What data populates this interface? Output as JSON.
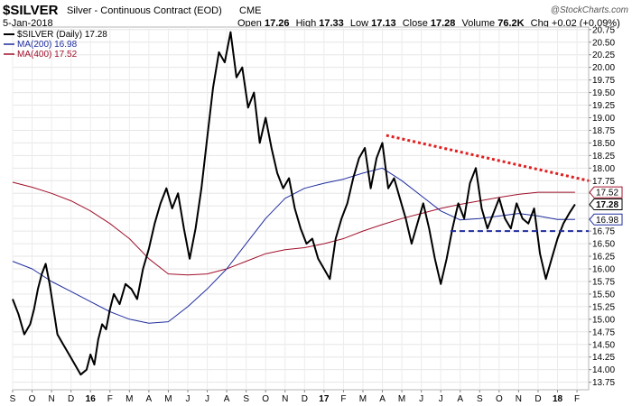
{
  "header": {
    "symbol": "$SILVER",
    "description": "Silver - Continuous Contract (EOD)",
    "exchange": "CME",
    "date": "5-Jan-2018",
    "ohlc": {
      "open_label": "Open",
      "open": "17.26",
      "high_label": "High",
      "high": "17.33",
      "low_label": "Low",
      "low": "17.13",
      "close_label": "Close",
      "close": "17.28",
      "volume_label": "Volume",
      "volume": "76.2K",
      "chg_label": "Chg",
      "chg": "+0.02 (+0.09%)"
    },
    "watermark": "@StockCharts.com"
  },
  "legend": [
    {
      "text": "$SILVER (Daily) 17.28",
      "color": "#000000"
    },
    {
      "text": "MA(200) 16.98",
      "color": "#1f2d9e"
    },
    {
      "text": "MA(400) 17.52",
      "color": "#a0102a"
    }
  ],
  "chart_data": {
    "type": "line",
    "x_tick_labels": [
      "S",
      "O",
      "N",
      "D",
      "16",
      "F",
      "M",
      "A",
      "M",
      "J",
      "J",
      "A",
      "S",
      "O",
      "N",
      "D",
      "17",
      "F",
      "M",
      "A",
      "M",
      "J",
      "J",
      "A",
      "S",
      "O",
      "N",
      "D",
      "18",
      "F"
    ],
    "y_tick_labels": [
      "13.75",
      "14.00",
      "14.25",
      "14.50",
      "14.75",
      "15.00",
      "15.25",
      "15.50",
      "15.75",
      "16.00",
      "16.25",
      "16.50",
      "16.75",
      "17.00",
      "17.25",
      "17.50",
      "17.75",
      "18.00",
      "18.25",
      "18.50",
      "18.75",
      "19.00",
      "19.25",
      "19.50",
      "19.75",
      "20.00",
      "20.25",
      "20.50",
      "20.75"
    ],
    "ylim": [
      13.6,
      20.8
    ],
    "xlim": [
      0,
      29.6
    ],
    "y_scale": "linear",
    "grid": true,
    "legend_position": "top-left",
    "value_labels": [
      {
        "text": "17.52",
        "value": 17.52,
        "color": "#a0102a",
        "bold": false
      },
      {
        "text": "17.28",
        "value": 17.28,
        "color": "#000000",
        "bold": true
      },
      {
        "text": "16.98",
        "value": 16.98,
        "color": "#1f2d9e",
        "bold": false
      }
    ],
    "series": [
      {
        "name": "$SILVER (Daily)",
        "color": "#000000",
        "width": 2,
        "x": [
          0,
          0.3,
          0.6,
          0.9,
          1.1,
          1.3,
          1.5,
          1.7,
          1.9,
          2.1,
          2.3,
          2.6,
          2.9,
          3.2,
          3.5,
          3.8,
          4.0,
          4.2,
          4.4,
          4.6,
          4.8,
          5.0,
          5.2,
          5.5,
          5.8,
          6.1,
          6.4,
          6.7,
          7.0,
          7.3,
          7.6,
          7.9,
          8.2,
          8.5,
          8.8,
          9.1,
          9.4,
          9.7,
          10.0,
          10.3,
          10.6,
          10.9,
          11.2,
          11.5,
          11.8,
          12.1,
          12.4,
          12.7,
          13.0,
          13.3,
          13.6,
          13.9,
          14.2,
          14.5,
          14.8,
          15.1,
          15.4,
          15.7,
          16.0,
          16.3,
          16.6,
          16.9,
          17.2,
          17.5,
          17.8,
          18.1,
          18.4,
          18.7,
          19.0,
          19.3,
          19.6,
          19.9,
          20.2,
          20.5,
          20.8,
          21.1,
          21.4,
          21.7,
          22.0,
          22.3,
          22.6,
          22.9,
          23.2,
          23.5,
          23.8,
          24.1,
          24.4,
          24.7,
          25.0,
          25.3,
          25.6,
          25.9,
          26.2,
          26.5,
          26.8,
          27.1,
          27.4,
          27.7,
          28.0,
          28.3,
          28.6,
          28.9
        ],
        "y": [
          15.4,
          15.1,
          14.7,
          14.9,
          15.2,
          15.6,
          15.9,
          16.1,
          15.7,
          15.2,
          14.7,
          14.5,
          14.3,
          14.1,
          13.9,
          14.0,
          14.3,
          14.1,
          14.6,
          14.9,
          14.8,
          15.2,
          15.5,
          15.3,
          15.7,
          15.6,
          15.4,
          16.0,
          16.4,
          16.9,
          17.3,
          17.6,
          17.2,
          17.5,
          16.8,
          16.2,
          16.8,
          17.6,
          18.6,
          19.6,
          20.3,
          20.1,
          20.7,
          19.8,
          20.0,
          19.2,
          19.5,
          18.5,
          19.0,
          18.4,
          17.9,
          17.6,
          17.8,
          17.2,
          16.8,
          16.5,
          16.6,
          16.2,
          16.0,
          15.8,
          16.6,
          17.0,
          17.3,
          17.8,
          18.2,
          18.4,
          17.6,
          18.2,
          18.5,
          17.6,
          17.8,
          17.4,
          17.0,
          16.5,
          16.9,
          17.3,
          16.8,
          16.2,
          15.7,
          16.2,
          16.8,
          17.3,
          17.0,
          17.7,
          18.0,
          17.2,
          16.8,
          17.1,
          17.4,
          17.0,
          16.8,
          17.3,
          17.0,
          16.9,
          17.2,
          16.3,
          15.8,
          16.2,
          16.6,
          16.9,
          17.1,
          17.28
        ]
      },
      {
        "name": "MA(200)",
        "color": "#1f2d9e",
        "width": 1,
        "x": [
          0,
          1,
          2,
          3,
          4,
          5,
          6,
          7,
          8,
          9,
          10,
          11,
          12,
          13,
          14,
          15,
          16,
          17,
          18,
          19,
          20,
          21,
          22,
          23,
          24,
          25,
          26,
          27,
          28,
          28.9
        ],
        "y": [
          16.15,
          16.0,
          15.75,
          15.55,
          15.35,
          15.15,
          15.0,
          14.92,
          14.95,
          15.25,
          15.6,
          16.0,
          16.5,
          17.0,
          17.4,
          17.6,
          17.7,
          17.78,
          17.9,
          18.0,
          17.75,
          17.45,
          17.15,
          16.97,
          17.0,
          17.05,
          17.1,
          17.05,
          16.98,
          16.98
        ]
      },
      {
        "name": "MA(400)",
        "color": "#a0102a",
        "width": 1,
        "x": [
          0,
          1,
          2,
          3,
          4,
          5,
          6,
          7,
          8,
          9,
          10,
          11,
          12,
          13,
          14,
          15,
          16,
          17,
          18,
          19,
          20,
          21,
          22,
          23,
          24,
          25,
          26,
          27,
          28,
          28.9
        ],
        "y": [
          17.72,
          17.62,
          17.5,
          17.35,
          17.15,
          16.9,
          16.6,
          16.2,
          15.9,
          15.88,
          15.9,
          16.0,
          16.15,
          16.3,
          16.38,
          16.42,
          16.5,
          16.6,
          16.75,
          16.88,
          17.0,
          17.1,
          17.2,
          17.28,
          17.35,
          17.42,
          17.48,
          17.52,
          17.52,
          17.52
        ]
      }
    ],
    "annotations": [
      {
        "kind": "dotted-line",
        "color": "#e02020",
        "x": [
          19.2,
          29.6
        ],
        "y": [
          18.65,
          17.75
        ]
      },
      {
        "kind": "dashed-line",
        "color": "#1f2d9e",
        "x": [
          22.5,
          29.6
        ],
        "y": [
          16.75,
          16.75
        ]
      }
    ]
  }
}
